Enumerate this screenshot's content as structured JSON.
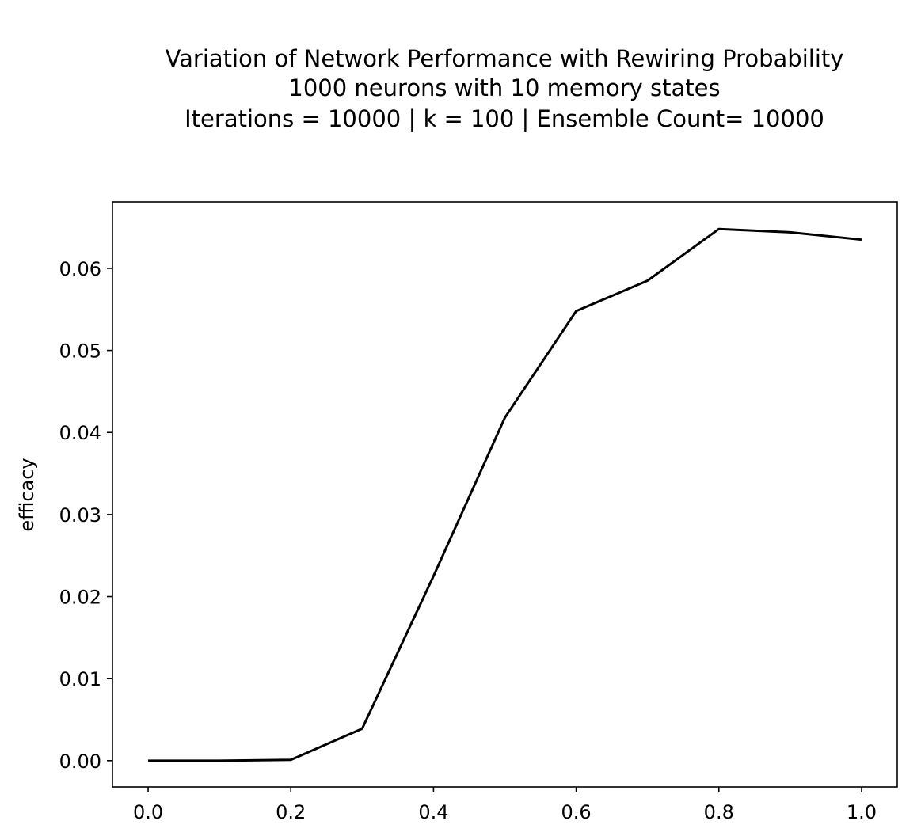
{
  "chart_data": {
    "type": "line",
    "title_lines": [
      "Variation of Network Performance with Rewiring Probability",
      "1000 neurons with 10 memory states",
      "Iterations = 10000 |  k = 100 | Ensemble Count= 10000"
    ],
    "xlabel": "",
    "ylabel": "efficacy",
    "x": [
      0.0,
      0.1,
      0.2,
      0.3,
      0.4,
      0.5,
      0.6,
      0.7,
      0.8,
      0.9,
      1.0
    ],
    "series": [
      {
        "values": [
          0.0,
          0.0,
          0.0001,
          0.0039,
          0.0225,
          0.0418,
          0.0548,
          0.0585,
          0.0648,
          0.0644,
          0.0635
        ],
        "color": "#000000"
      }
    ],
    "xlim": [
      -0.05,
      1.05
    ],
    "ylim": [
      -0.0032,
      0.0681
    ],
    "xticks": [
      0.0,
      0.2,
      0.4,
      0.6,
      0.8,
      1.0
    ],
    "xtick_labels": [
      "0.0",
      "0.2",
      "0.4",
      "0.6",
      "0.8",
      "1.0"
    ],
    "yticks": [
      0.0,
      0.01,
      0.02,
      0.03,
      0.04,
      0.05,
      0.06
    ],
    "ytick_labels": [
      "0.00",
      "0.01",
      "0.02",
      "0.03",
      "0.04",
      "0.05",
      "0.06"
    ],
    "grid": false,
    "legend": "none"
  }
}
